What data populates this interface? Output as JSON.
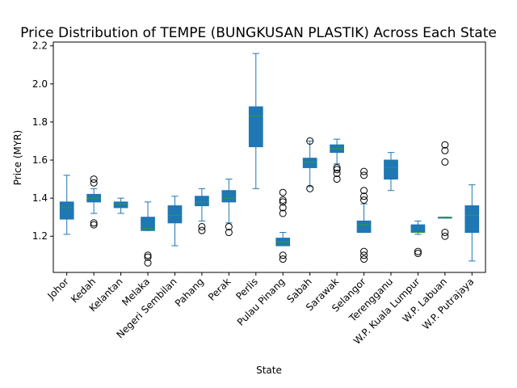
{
  "chart_data": {
    "type": "box",
    "title": "Price Distribution of TEMPE (BUNGKUSAN PLASTIK) Across Each State",
    "xlabel": "State",
    "ylabel": "Price (MYR)",
    "ylim": [
      1.01,
      2.22
    ],
    "yticks": [
      "1.2",
      "1.4",
      "1.6",
      "1.8",
      "2.0",
      "2.2"
    ],
    "grid": false,
    "colors": {
      "box": "#1f77b4",
      "median": "#2ca02c",
      "whisker": "#1f77b4"
    },
    "categories": [
      "Johor",
      "Kedah",
      "Kelantan",
      "Melaka",
      "Negeri Sembilan",
      "Pahang",
      "Perak",
      "Perlis",
      "Pulau Pinang",
      "Sabah",
      "Sarawak",
      "Selangor",
      "Terengganu",
      "W.P. Kuala Lumpur",
      "W.P. Labuan",
      "W.P. Putrajaya"
    ],
    "boxes": [
      {
        "state": "Johor",
        "whislo": 1.21,
        "q1": 1.29,
        "med": 1.35,
        "q3": 1.38,
        "whishi": 1.52,
        "fliers": []
      },
      {
        "state": "Kedah",
        "whislo": 1.32,
        "q1": 1.38,
        "med": 1.4,
        "q3": 1.42,
        "whishi": 1.45,
        "fliers": [
          1.26,
          1.27,
          1.48,
          1.5
        ]
      },
      {
        "state": "Kelantan",
        "whislo": 1.32,
        "q1": 1.35,
        "med": 1.37,
        "q3": 1.38,
        "whishi": 1.4,
        "fliers": []
      },
      {
        "state": "Melaka",
        "whislo": 1.23,
        "q1": 1.23,
        "med": 1.24,
        "q3": 1.3,
        "whishi": 1.38,
        "fliers": [
          1.06,
          1.09,
          1.1
        ]
      },
      {
        "state": "Negeri Sembilan",
        "whislo": 1.15,
        "q1": 1.27,
        "med": 1.31,
        "q3": 1.36,
        "whishi": 1.41,
        "fliers": []
      },
      {
        "state": "Pahang",
        "whislo": 1.28,
        "q1": 1.36,
        "med": 1.38,
        "q3": 1.41,
        "whishi": 1.45,
        "fliers": [
          1.23,
          1.25
        ]
      },
      {
        "state": "Perak",
        "whislo": 1.27,
        "q1": 1.38,
        "med": 1.4,
        "q3": 1.44,
        "whishi": 1.5,
        "fliers": [
          1.22,
          1.25
        ]
      },
      {
        "state": "Perlis",
        "whislo": 1.45,
        "q1": 1.67,
        "med": 1.83,
        "q3": 1.88,
        "whishi": 2.16,
        "fliers": []
      },
      {
        "state": "Pulau Pinang",
        "whislo": 1.15,
        "q1": 1.15,
        "med": 1.17,
        "q3": 1.19,
        "whishi": 1.22,
        "fliers": [
          1.08,
          1.1,
          1.32,
          1.35,
          1.38,
          1.39,
          1.43
        ]
      },
      {
        "state": "Sabah",
        "whislo": 1.46,
        "q1": 1.56,
        "med": 1.59,
        "q3": 1.61,
        "whishi": 1.7,
        "fliers": [
          1.45,
          1.7
        ]
      },
      {
        "state": "Sarawak",
        "whislo": 1.58,
        "q1": 1.64,
        "med": 1.66,
        "q3": 1.68,
        "whishi": 1.71,
        "fliers": [
          1.5,
          1.53,
          1.55,
          1.56
        ]
      },
      {
        "state": "Selangor",
        "whislo": 1.22,
        "q1": 1.22,
        "med": 1.26,
        "q3": 1.28,
        "whishi": 1.37,
        "fliers": [
          1.08,
          1.1,
          1.12,
          1.39,
          1.41,
          1.44,
          1.52,
          1.54
        ]
      },
      {
        "state": "Terengganu",
        "whislo": 1.44,
        "q1": 1.5,
        "med": 1.56,
        "q3": 1.6,
        "whishi": 1.64,
        "fliers": []
      },
      {
        "state": "W.P. Kuala Lumpur",
        "whislo": 1.21,
        "q1": 1.22,
        "med": 1.22,
        "q3": 1.26,
        "whishi": 1.28,
        "fliers": [
          1.11,
          1.12
        ]
      },
      {
        "state": "W.P. Labuan",
        "whislo": 1.3,
        "q1": 1.3,
        "med": 1.3,
        "q3": 1.3,
        "whishi": 1.3,
        "fliers": [
          1.2,
          1.22,
          1.59,
          1.65,
          1.68
        ]
      },
      {
        "state": "W.P. Putrajaya",
        "whislo": 1.07,
        "q1": 1.22,
        "med": 1.31,
        "q3": 1.36,
        "whishi": 1.47,
        "fliers": []
      }
    ]
  }
}
